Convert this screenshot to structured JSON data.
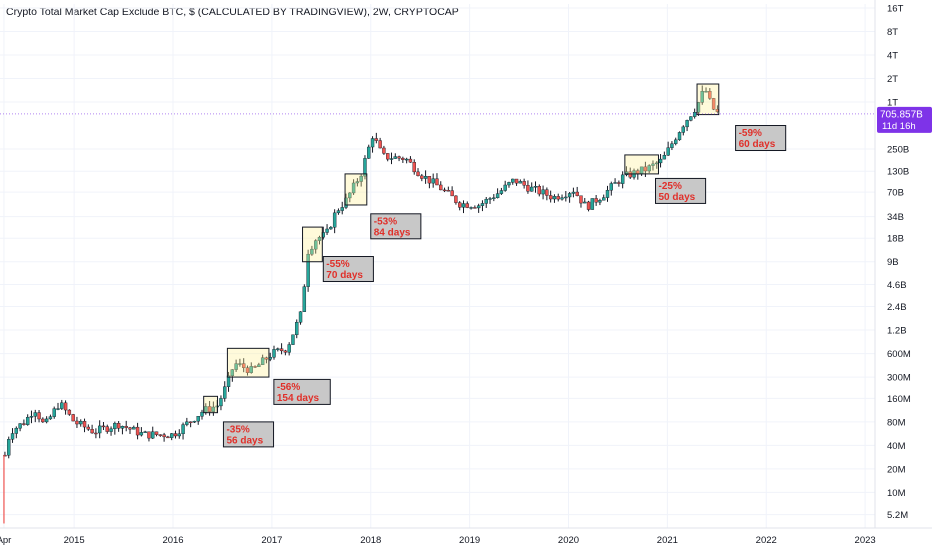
{
  "chart_data": {
    "type": "candlestick",
    "title": "Crypto Total Market Cap Exclude BTC, $ (CALCULATED BY TRADINGVIEW), 2W, CRYPTOCAP",
    "interval": "2W",
    "y_scale": "log",
    "ylim": [
      3500000,
      18000000000000
    ],
    "xlim": [
      2014.25,
      2023.1
    ],
    "x_ticks": [
      {
        "x": 2014.29,
        "label": "Apr"
      },
      {
        "x": 2015.0,
        "label": "2015"
      },
      {
        "x": 2016.0,
        "label": "2016"
      },
      {
        "x": 2017.0,
        "label": "2017"
      },
      {
        "x": 2018.0,
        "label": "2018"
      },
      {
        "x": 2019.0,
        "label": "2019"
      },
      {
        "x": 2020.0,
        "label": "2020"
      },
      {
        "x": 2021.0,
        "label": "2021"
      },
      {
        "x": 2022.0,
        "label": "2022"
      },
      {
        "x": 2023.0,
        "label": "2023"
      }
    ],
    "y_ticks": [
      {
        "value": 16000000000000,
        "label": "16T"
      },
      {
        "value": 8000000000000,
        "label": "8T"
      },
      {
        "value": 4000000000000,
        "label": "4T"
      },
      {
        "value": 2000000000000,
        "label": "2T"
      },
      {
        "value": 1000000000000,
        "label": "1T"
      },
      {
        "value": 250000000000,
        "label": "250B"
      },
      {
        "value": 130000000000,
        "label": "130B"
      },
      {
        "value": 70000000000,
        "label": "70B"
      },
      {
        "value": 34000000000,
        "label": "34B"
      },
      {
        "value": 18000000000,
        "label": "18B"
      },
      {
        "value": 9000000000,
        "label": "9B"
      },
      {
        "value": 4600000000,
        "label": "4.6B"
      },
      {
        "value": 2400000000,
        "label": "2.4B"
      },
      {
        "value": 1200000000,
        "label": "1.2B"
      },
      {
        "value": 600000000,
        "label": "600M"
      },
      {
        "value": 300000000,
        "label": "300M"
      },
      {
        "value": 160000000,
        "label": "160M"
      },
      {
        "value": 80000000,
        "label": "80M"
      },
      {
        "value": 40000000,
        "label": "40M"
      },
      {
        "value": 20000000,
        "label": "20M"
      },
      {
        "value": 10000000,
        "label": "10M"
      },
      {
        "value": 5200000,
        "label": "5.2M"
      }
    ],
    "grid": true,
    "up_color": "#26a69a",
    "down_color": "#ef5350",
    "body_color": "#131722",
    "current_price": {
      "value": 705857000000,
      "label": "705.857B",
      "countdown": "11d 16h",
      "color": "#7e33e8"
    },
    "anchors": [
      {
        "x": 2014.29,
        "v": 4000000
      },
      {
        "x": 2014.3,
        "v": 30000000
      },
      {
        "x": 2014.35,
        "v": 60000000
      },
      {
        "x": 2014.5,
        "v": 80000000
      },
      {
        "x": 2014.6,
        "v": 120000000
      },
      {
        "x": 2014.7,
        "v": 70000000
      },
      {
        "x": 2014.85,
        "v": 140000000
      },
      {
        "x": 2015.0,
        "v": 80000000
      },
      {
        "x": 2015.2,
        "v": 60000000
      },
      {
        "x": 2015.45,
        "v": 75000000
      },
      {
        "x": 2015.7,
        "v": 55000000
      },
      {
        "x": 2016.0,
        "v": 55000000
      },
      {
        "x": 2016.3,
        "v": 110000000
      },
      {
        "x": 2016.45,
        "v": 130000000
      },
      {
        "x": 2016.55,
        "v": 250000000
      },
      {
        "x": 2016.62,
        "v": 450000000
      },
      {
        "x": 2016.8,
        "v": 360000000
      },
      {
        "x": 2017.0,
        "v": 600000000
      },
      {
        "x": 2017.15,
        "v": 700000000
      },
      {
        "x": 2017.3,
        "v": 2000000000
      },
      {
        "x": 2017.36,
        "v": 12000000000
      },
      {
        "x": 2017.45,
        "v": 18000000000
      },
      {
        "x": 2017.55,
        "v": 20000000000
      },
      {
        "x": 2017.65,
        "v": 40000000000
      },
      {
        "x": 2017.75,
        "v": 55000000000
      },
      {
        "x": 2017.9,
        "v": 120000000000
      },
      {
        "x": 2018.02,
        "v": 380000000000
      },
      {
        "x": 2018.12,
        "v": 200000000000
      },
      {
        "x": 2018.35,
        "v": 190000000000
      },
      {
        "x": 2018.5,
        "v": 120000000000
      },
      {
        "x": 2018.7,
        "v": 80000000000
      },
      {
        "x": 2018.9,
        "v": 50000000000
      },
      {
        "x": 2019.1,
        "v": 48000000000
      },
      {
        "x": 2019.3,
        "v": 70000000000
      },
      {
        "x": 2019.45,
        "v": 100000000000
      },
      {
        "x": 2019.6,
        "v": 80000000000
      },
      {
        "x": 2019.85,
        "v": 60000000000
      },
      {
        "x": 2020.05,
        "v": 75000000000
      },
      {
        "x": 2020.18,
        "v": 45000000000
      },
      {
        "x": 2020.35,
        "v": 65000000000
      },
      {
        "x": 2020.55,
        "v": 110000000000
      },
      {
        "x": 2020.8,
        "v": 140000000000
      },
      {
        "x": 2020.95,
        "v": 180000000000
      },
      {
        "x": 2021.15,
        "v": 500000000000
      },
      {
        "x": 2021.3,
        "v": 900000000000
      },
      {
        "x": 2021.38,
        "v": 1500000000000
      },
      {
        "x": 2021.45,
        "v": 850000000000
      },
      {
        "x": 2021.52,
        "v": 700000000000
      }
    ],
    "boxes": [
      {
        "x0": 2016.31,
        "x1": 2016.45,
        "v0": 105000000,
        "v1": 170000000
      },
      {
        "x0": 2016.55,
        "x1": 2016.97,
        "v0": 300000000,
        "v1": 700000000
      },
      {
        "x0": 2017.31,
        "x1": 2017.51,
        "v0": 9000000000,
        "v1": 25000000000
      },
      {
        "x0": 2017.74,
        "x1": 2017.96,
        "v0": 48000000000,
        "v1": 120000000000
      },
      {
        "x0": 2020.57,
        "x1": 2020.91,
        "v0": 120000000000,
        "v1": 210000000000
      },
      {
        "x0": 2021.3,
        "x1": 2021.52,
        "v0": 690000000000,
        "v1": 1700000000000
      }
    ],
    "annotations": [
      {
        "x": 2016.51,
        "v": 80000000,
        "pct": "-35%",
        "days": "56 days"
      },
      {
        "x": 2017.02,
        "v": 280000000,
        "pct": "-56%",
        "days": "154 days"
      },
      {
        "x": 2017.52,
        "v": 10500000000,
        "pct": "-55%",
        "days": "70 days"
      },
      {
        "x": 2018.0,
        "v": 37000000000,
        "pct": "-53%",
        "days": "84 days"
      },
      {
        "x": 2020.88,
        "v": 105000000000,
        "pct": "-25%",
        "days": "50 days"
      },
      {
        "x": 2021.69,
        "v": 500000000000,
        "pct": "-59%",
        "days": "60 days"
      }
    ]
  }
}
